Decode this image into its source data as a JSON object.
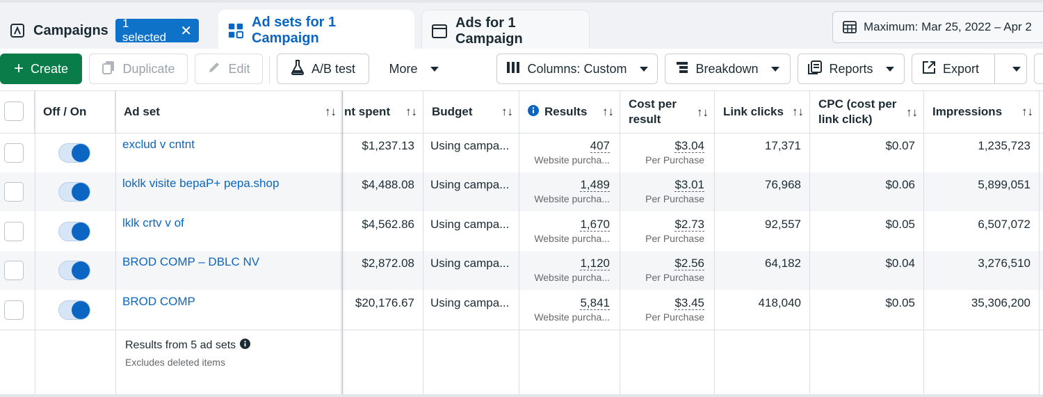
{
  "tabs": {
    "campaigns": {
      "label": "Campaigns",
      "selected_chip": "1 selected"
    },
    "adsets": {
      "label": "Ad sets for 1 Campaign"
    },
    "ads": {
      "label": "Ads for 1 Campaign"
    }
  },
  "date_range": "Maximum: Mar 25, 2022 – Apr 2",
  "toolbar": {
    "create": "Create",
    "duplicate": "Duplicate",
    "edit": "Edit",
    "ab_test": "A/B test",
    "more": "More",
    "columns": "Columns: Custom",
    "breakdown": "Breakdown",
    "reports": "Reports",
    "export": "Export"
  },
  "columns": {
    "off_on": "Off / On",
    "ad_set": "Ad set",
    "amount_spent": "nt spent",
    "budget": "Budget",
    "results": "Results",
    "cost_per_result_1": "Cost per",
    "cost_per_result_2": "result",
    "link_clicks": "Link clicks",
    "cpc_1": "CPC (cost per",
    "cpc_2": "link click)",
    "impressions": "Impressions",
    "sort_icon": "↑↓"
  },
  "rows": [
    {
      "name": "exclud v cntnt",
      "spent": "$1,237.13",
      "budget": "Using campa...",
      "results": "407",
      "results_sub": "Website purcha...",
      "cpr": "$3.04",
      "cpr_sub": "Per Purchase",
      "link_clicks": "17,371",
      "cpc": "$0.07",
      "impressions": "1,235,723",
      "on": true
    },
    {
      "name": "loklk visite bepaP+ pepa.shop",
      "spent": "$4,488.08",
      "budget": "Using campa...",
      "results": "1,489",
      "results_sub": "Website purcha...",
      "cpr": "$3.01",
      "cpr_sub": "Per Purchase",
      "link_clicks": "76,968",
      "cpc": "$0.06",
      "impressions": "5,899,051",
      "on": true
    },
    {
      "name": "lklk crtv v of",
      "spent": "$4,562.86",
      "budget": "Using campa...",
      "results": "1,670",
      "results_sub": "Website purcha...",
      "cpr": "$2.73",
      "cpr_sub": "Per Purchase",
      "link_clicks": "92,557",
      "cpc": "$0.05",
      "impressions": "6,507,072",
      "on": true
    },
    {
      "name": "BROD COMP – DBLC NV",
      "spent": "$2,872.08",
      "budget": "Using campa...",
      "results": "1,120",
      "results_sub": "Website purcha...",
      "cpr": "$2.56",
      "cpr_sub": "Per Purchase",
      "link_clicks": "64,182",
      "cpc": "$0.04",
      "impressions": "3,276,510",
      "on": true
    },
    {
      "name": "BROD COMP",
      "spent": "$20,176.67",
      "budget": "Using campa...",
      "results": "5,841",
      "results_sub": "Website purcha...",
      "cpr": "$3.45",
      "cpr_sub": "Per Purchase",
      "link_clicks": "418,040",
      "cpc": "$0.05",
      "impressions": "35,306,200",
      "on": true
    }
  ],
  "footer": {
    "title": "Results from 5 ad sets",
    "subtitle": "Excludes deleted items"
  },
  "colors": {
    "accent_blue": "#0a66c2",
    "create_green": "#0a7c4a"
  }
}
